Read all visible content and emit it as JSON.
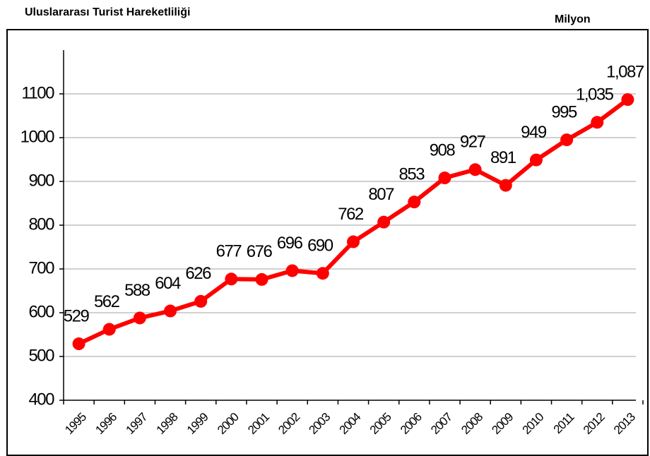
{
  "chart_data": {
    "type": "line",
    "title": "Uluslararası Turist Hareketliliği",
    "unit_label": "Milyon",
    "categories": [
      "1995",
      "1996",
      "1997",
      "1998",
      "1999",
      "2000",
      "2001",
      "2002",
      "2003",
      "2004",
      "2005",
      "2006",
      "2007",
      "2008",
      "2009",
      "2010",
      "2011",
      "2012",
      "2013"
    ],
    "series": [
      {
        "color": "#ff0000",
        "values": [
          529,
          562,
          588,
          604,
          626,
          677,
          676,
          696,
          690,
          762,
          807,
          853,
          908,
          927,
          891,
          949,
          995,
          1035,
          1087
        ],
        "value_labels": [
          "529",
          "562",
          "588",
          "604",
          "626",
          "677",
          "676",
          "696",
          "690",
          "762",
          "807",
          "853",
          "908",
          "927",
          "891",
          "949",
          "995",
          "1,035",
          "1,087"
        ]
      }
    ],
    "ylim": [
      400,
      1200
    ],
    "yticks": [
      400,
      500,
      600,
      700,
      800,
      900,
      1000,
      1100
    ],
    "grid": true
  }
}
